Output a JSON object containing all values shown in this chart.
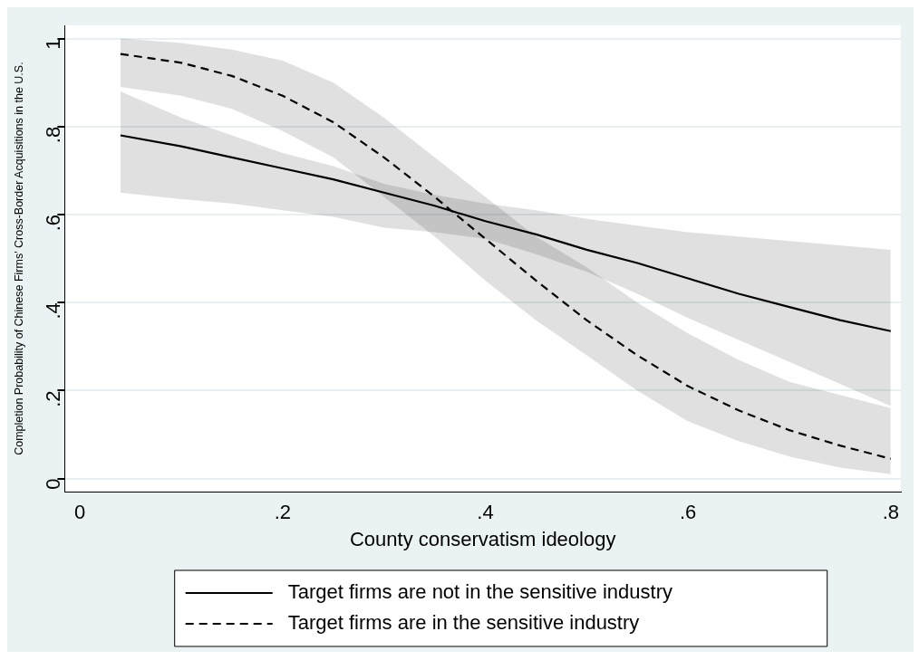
{
  "chart_data": {
    "type": "line",
    "xlabel": "County conservatism ideology",
    "ylabel": "Completion Probability of Chinese Firms' Cross-Border Acquisitions in the U.S.",
    "x": [
      0.04,
      0.1,
      0.15,
      0.2,
      0.25,
      0.3,
      0.35,
      0.4,
      0.45,
      0.5,
      0.55,
      0.6,
      0.65,
      0.7,
      0.75,
      0.8
    ],
    "series": [
      {
        "name": "Target firms are not in the sensitive industry",
        "color": "#000000",
        "line_style": "solid",
        "values": [
          0.78,
          0.755,
          0.73,
          0.705,
          0.68,
          0.65,
          0.62,
          0.585,
          0.555,
          0.52,
          0.49,
          0.455,
          0.42,
          0.39,
          0.36,
          0.335
        ],
        "lower": [
          0.65,
          0.635,
          0.625,
          0.61,
          0.595,
          0.57,
          0.56,
          0.545,
          0.51,
          0.47,
          0.42,
          0.365,
          0.315,
          0.265,
          0.215,
          0.165
        ],
        "upper": [
          0.88,
          0.82,
          0.78,
          0.74,
          0.71,
          0.67,
          0.645,
          0.625,
          0.61,
          0.59,
          0.575,
          0.56,
          0.55,
          0.54,
          0.53,
          0.52
        ]
      },
      {
        "name": "Target firms are in the sensitive industry",
        "color": "#000000",
        "line_style": "dashed",
        "values": [
          0.965,
          0.945,
          0.915,
          0.87,
          0.81,
          0.73,
          0.64,
          0.545,
          0.45,
          0.36,
          0.28,
          0.21,
          0.155,
          0.11,
          0.075,
          0.045
        ],
        "lower": [
          0.89,
          0.87,
          0.84,
          0.79,
          0.73,
          0.64,
          0.55,
          0.45,
          0.36,
          0.28,
          0.2,
          0.13,
          0.085,
          0.05,
          0.025,
          0.01
        ],
        "upper": [
          1.0,
          0.99,
          0.975,
          0.95,
          0.9,
          0.82,
          0.73,
          0.64,
          0.55,
          0.48,
          0.4,
          0.33,
          0.27,
          0.22,
          0.19,
          0.16
        ]
      }
    ],
    "xlim": [
      -0.015,
      0.81
    ],
    "ylim": [
      -0.03,
      1.03
    ],
    "xticks": [
      0,
      {
        "value": 0.2,
        "label": ".2"
      },
      {
        "value": 0.4,
        "label": ".4"
      },
      {
        "value": 0.6,
        "label": ".6"
      },
      {
        "value": 0.8,
        "label": ".8"
      }
    ],
    "yticks": [
      0,
      {
        "value": 0.2,
        "label": ".2"
      },
      {
        "value": 0.4,
        "label": ".4"
      },
      {
        "value": 0.6,
        "label": ".6"
      },
      {
        "value": 0.8,
        "label": ".8"
      },
      1
    ],
    "grid": "y",
    "legend": "bottom",
    "marker": "none"
  }
}
